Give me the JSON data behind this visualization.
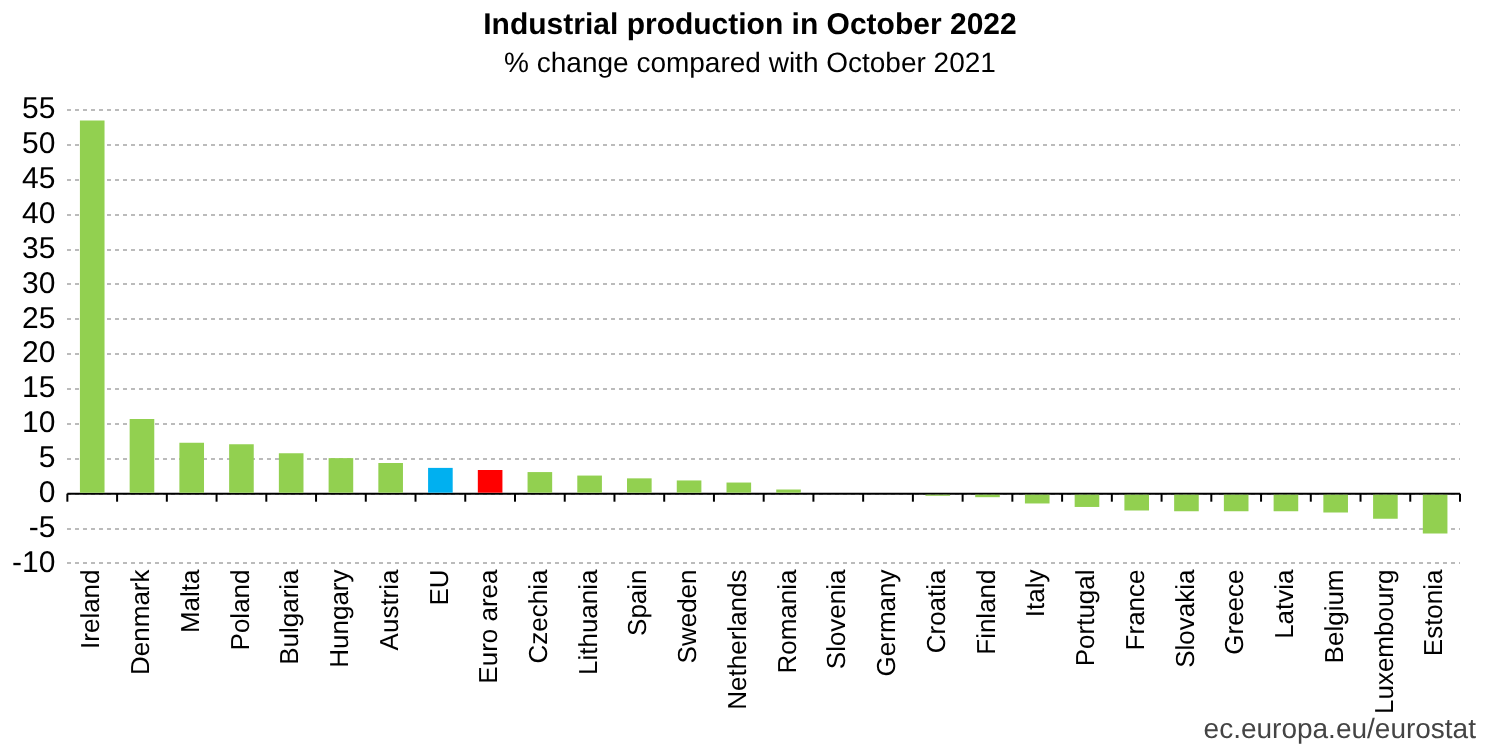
{
  "chart_data": {
    "type": "bar",
    "title": "Industrial production in October 2022",
    "subtitle": "% change compared with October 2021",
    "categories": [
      "Ireland",
      "Denmark",
      "Malta",
      "Poland",
      "Bulgaria",
      "Hungary",
      "Austria",
      "EU",
      "Euro area",
      "Czechia",
      "Lithuania",
      "Spain",
      "Sweden",
      "Netherlands",
      "Romania",
      "Slovenia",
      "Germany",
      "Croatia",
      "Finland",
      "Italy",
      "Portugal",
      "France",
      "Slovakia",
      "Greece",
      "Latvia",
      "Belgium",
      "Luxembourg",
      "Estonia"
    ],
    "values": [
      53.5,
      10.7,
      7.3,
      7.1,
      5.8,
      5.1,
      4.4,
      3.7,
      3.4,
      3.1,
      2.6,
      2.2,
      1.9,
      1.6,
      0.6,
      0,
      0,
      -0.3,
      -0.5,
      -1.4,
      -1.9,
      -2.4,
      -2.5,
      -2.5,
      -2.5,
      -2.7,
      -3.6,
      -5.7
    ],
    "colors": [
      "#92d050",
      "#92d050",
      "#92d050",
      "#92d050",
      "#92d050",
      "#92d050",
      "#92d050",
      "#00b0f0",
      "#ff0000",
      "#92d050",
      "#92d050",
      "#92d050",
      "#92d050",
      "#92d050",
      "#92d050",
      "#92d050",
      "#92d050",
      "#92d050",
      "#92d050",
      "#92d050",
      "#92d050",
      "#92d050",
      "#92d050",
      "#92d050",
      "#92d050",
      "#92d050",
      "#92d050",
      "#92d050"
    ],
    "ylim": [
      -10,
      55
    ],
    "yticks": [
      -10,
      -5,
      0,
      5,
      10,
      15,
      20,
      25,
      30,
      35,
      40,
      45,
      50,
      55
    ],
    "grid": "y",
    "legend": false,
    "annotations": [
      "ec.europa.eu/eurostat"
    ]
  }
}
